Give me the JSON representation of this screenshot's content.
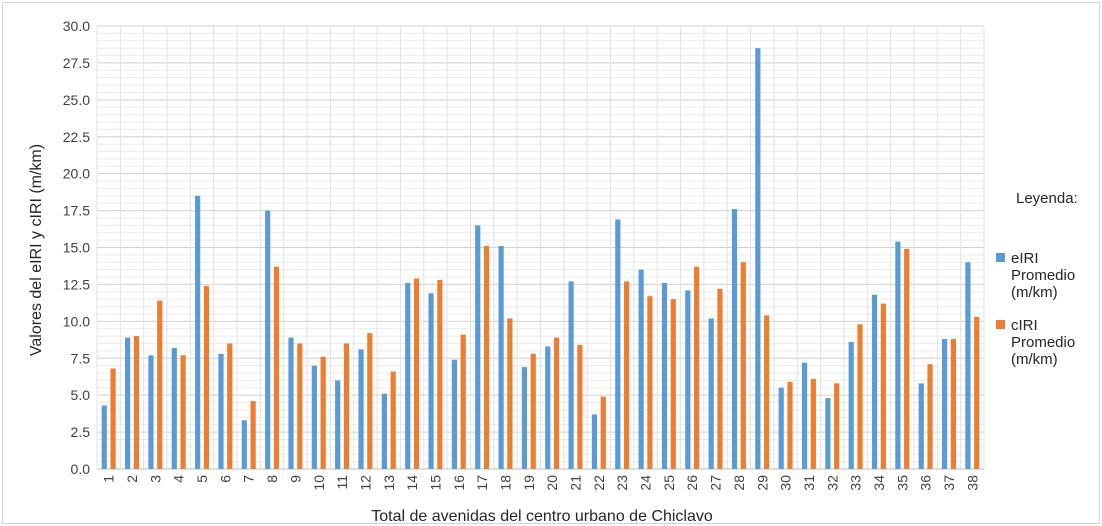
{
  "chart_data": {
    "type": "bar",
    "title": "",
    "xlabel": "Total de avenidas del centro urbano de Chiclavo",
    "ylabel": "Valores del eIRI y cIRI (m/km)",
    "ylim": [
      0,
      30
    ],
    "yticks": [
      "0.0",
      "2.5",
      "5.0",
      "7.5",
      "10.0",
      "12.5",
      "15.0",
      "17.5",
      "20.0",
      "22.5",
      "25.0",
      "27.5",
      "30.0"
    ],
    "grid": "both",
    "legend_position": "right",
    "legend_title": "Leyenda:",
    "categories": [
      "1",
      "2",
      "3",
      "4",
      "5",
      "6",
      "7",
      "8",
      "9",
      "10",
      "11",
      "12",
      "13",
      "14",
      "15",
      "16",
      "17",
      "18",
      "19",
      "20",
      "21",
      "22",
      "23",
      "24",
      "25",
      "26",
      "27",
      "28",
      "29",
      "30",
      "31",
      "32",
      "33",
      "34",
      "35",
      "36",
      "37",
      "38"
    ],
    "series": [
      {
        "name": "eIRI Promedio (m/km)",
        "legend_lines": [
          "eIRI",
          "Promedio",
          "(m/km)"
        ],
        "color": "#5B9BD5",
        "values": [
          4.3,
          8.9,
          7.7,
          8.2,
          18.5,
          7.8,
          3.3,
          17.5,
          8.9,
          7.0,
          6.0,
          8.1,
          5.1,
          12.6,
          11.9,
          7.4,
          16.5,
          15.1,
          6.9,
          8.3,
          12.7,
          3.7,
          16.9,
          13.5,
          12.6,
          12.1,
          10.2,
          17.6,
          28.5,
          5.5,
          7.2,
          4.8,
          8.6,
          11.8,
          15.4,
          5.8,
          8.8,
          14.0
        ]
      },
      {
        "name": "cIRI Promedio (m/km)",
        "legend_lines": [
          "cIRI",
          "Promedio",
          "(m/km)"
        ],
        "color": "#ED7D31",
        "values": [
          6.8,
          9.0,
          11.4,
          7.7,
          12.4,
          8.5,
          4.6,
          13.7,
          8.5,
          7.6,
          8.5,
          9.2,
          6.6,
          12.9,
          12.8,
          9.1,
          15.1,
          10.2,
          7.8,
          8.9,
          8.4,
          4.9,
          12.7,
          11.7,
          11.5,
          13.7,
          12.2,
          14.0,
          10.4,
          5.9,
          6.1,
          5.8,
          9.8,
          11.2,
          14.9,
          7.1,
          8.8,
          10.3
        ]
      }
    ]
  }
}
